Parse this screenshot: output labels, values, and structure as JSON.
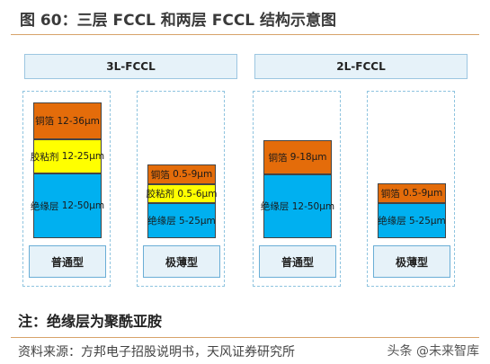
{
  "title": "图 60：三层 FCCL 和两层 FCCL 结构示意图",
  "headers": [
    "3L-FCCL",
    "2L-FCCL"
  ],
  "columns": [
    {
      "type": "普通型",
      "layers": [
        {
          "label": "铜箔",
          "spec": "12-36μm"
        },
        {
          "label": "胶粘剂",
          "spec": "12-25μm"
        },
        {
          "label": "绝缘层",
          "spec": "12-50μm"
        }
      ]
    },
    {
      "type": "极薄型",
      "layers": [
        {
          "label": "铜箔",
          "spec": "0.5-9μm"
        },
        {
          "label": "胶粘剂",
          "spec": "0.5-6μm"
        },
        {
          "label": "绝缘层",
          "spec": "5-25μm"
        }
      ]
    },
    {
      "type": "普通型",
      "layers": [
        {
          "label": "铜箔",
          "spec": "9-18μm"
        },
        {
          "label": "绝缘层",
          "spec": "12-50μm"
        }
      ]
    },
    {
      "type": "极薄型",
      "layers": [
        {
          "label": "铜箔",
          "spec": "0.5-9μm"
        },
        {
          "label": "绝缘层",
          "spec": "5-25μm"
        }
      ]
    }
  ],
  "note": "注：绝缘层为聚酰亚胺",
  "source": "资料来源：方邦电子招股说明书，天风证券研究所",
  "watermark": "头条 @未来智库",
  "colors": {
    "copper": "#e46c0a",
    "adhesive": "#ffff00",
    "insulation": "#00b0f0"
  }
}
